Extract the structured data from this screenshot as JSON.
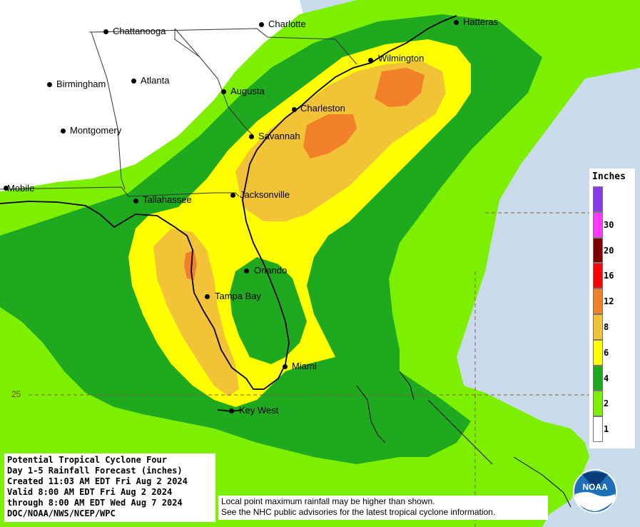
{
  "title": {
    "line1": "Potential Tropical Cyclone Four",
    "line2": "Day 1-5 Rainfall Forecast (inches)",
    "line3": "Created 11:03 AM EDT Fri Aug 2 2024",
    "line4": "Valid 8:00 AM EDT Fri Aug 2 2024",
    "line5": "through 8:00 AM EDT Wed Aug 7 2024",
    "line6": "DOC/NOAA/NWS/NCEP/WPC"
  },
  "disclaimer": {
    "line1": "Local point maximum rainfall may be higher than shown.",
    "line2": "See the NHC public advisories for the latest tropical cyclone information."
  },
  "legend": {
    "title": "Inches",
    "bins": [
      {
        "label": "1",
        "color": "#ffffff"
      },
      {
        "label": "2",
        "color": "#7cf000"
      },
      {
        "label": "4",
        "color": "#1ea91e"
      },
      {
        "label": "6",
        "color": "#ffff00"
      },
      {
        "label": "8",
        "color": "#f2c237"
      },
      {
        "label": "12",
        "color": "#f28028"
      },
      {
        "label": "16",
        "color": "#ff0000"
      },
      {
        "label": "20",
        "color": "#800000"
      },
      {
        "label": "30",
        "color": "#ff39ff"
      },
      {
        "label": "",
        "color": "#8a38f0"
      }
    ]
  },
  "cities": [
    {
      "name": "Chattanooga"
    },
    {
      "name": "Charlotte"
    },
    {
      "name": "Hatteras"
    },
    {
      "name": "Birmingham"
    },
    {
      "name": "Atlanta"
    },
    {
      "name": "Wilmington"
    },
    {
      "name": "Augusta"
    },
    {
      "name": "Charleston"
    },
    {
      "name": "Montgomery"
    },
    {
      "name": "Savannah"
    },
    {
      "name": "Mobile"
    },
    {
      "name": "Tallahassee"
    },
    {
      "name": "Jacksonville"
    },
    {
      "name": "Orlando"
    },
    {
      "name": "Tampa Bay"
    },
    {
      "name": "Miami"
    },
    {
      "name": "Key West"
    }
  ],
  "grid": {
    "latitude_label": "25"
  },
  "logo": {
    "text": "NOAA"
  },
  "colors": {
    "ocean": "#c9dbea",
    "land_no_rain": "#ffffff",
    "rain_1_2": "#7cf000",
    "rain_2_4": "#1ea91e",
    "rain_4_6": "#ffff00",
    "rain_6_8": "#f2c237",
    "rain_8_12": "#f28028"
  }
}
